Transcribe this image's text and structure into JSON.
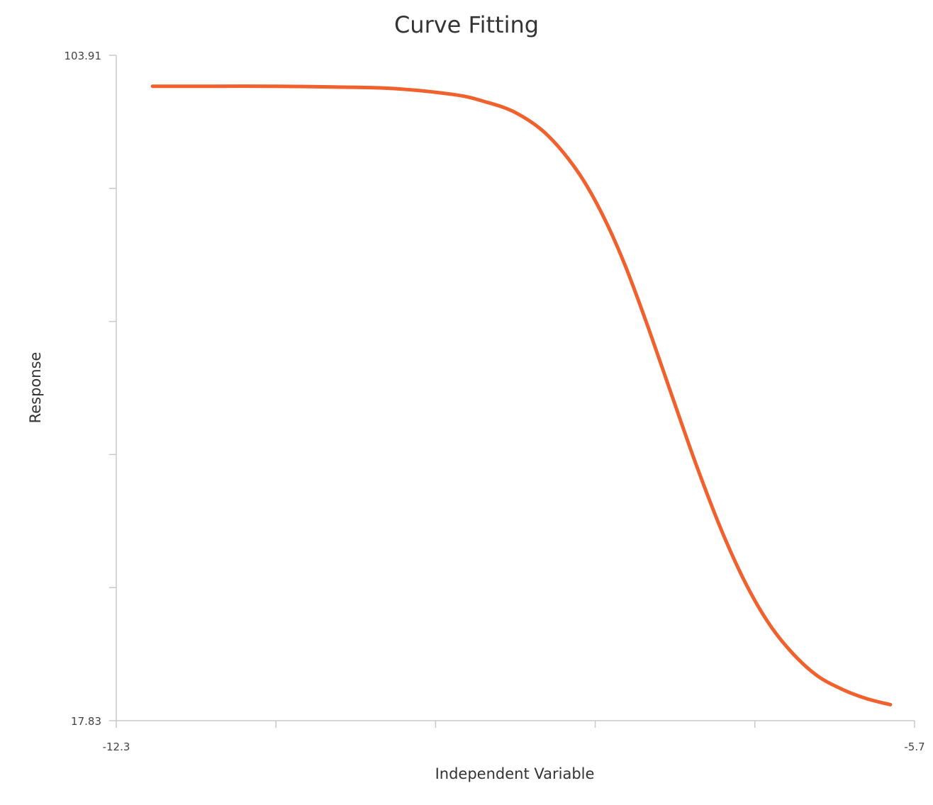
{
  "chart_data": {
    "type": "line",
    "title": "Curve Fitting",
    "xlabel": "Independent Variable",
    "ylabel": "Response",
    "xlim": [
      -12.3,
      -5.7
    ],
    "ylim": [
      17.83,
      103.91
    ],
    "x_tick_labels": [
      "-12.3",
      "-5.7"
    ],
    "y_tick_labels": [
      "103.91",
      "17.83"
    ],
    "x_tick_count": 6,
    "y_tick_count": 6,
    "grid": false,
    "line_color": "#f0612d",
    "series": [
      {
        "x": [
          -12.0,
          -11.5,
          -11.0,
          -10.5,
          -10.0,
          -9.5,
          -9.25,
          -9.0,
          -8.75,
          -8.5,
          -8.3,
          -8.1,
          -7.9,
          -7.7,
          -7.5,
          -7.3,
          -7.1,
          -6.9,
          -6.7,
          -6.5,
          -6.3,
          -6.1,
          -5.9
        ],
        "y": [
          99.9,
          99.9,
          99.9,
          99.8,
          99.6,
          98.8,
          97.9,
          96.5,
          93.8,
          89.2,
          83.9,
          77.0,
          68.6,
          59.6,
          50.7,
          42.6,
          35.7,
          30.3,
          26.4,
          23.6,
          21.9,
          20.7,
          19.9
        ]
      }
    ]
  }
}
